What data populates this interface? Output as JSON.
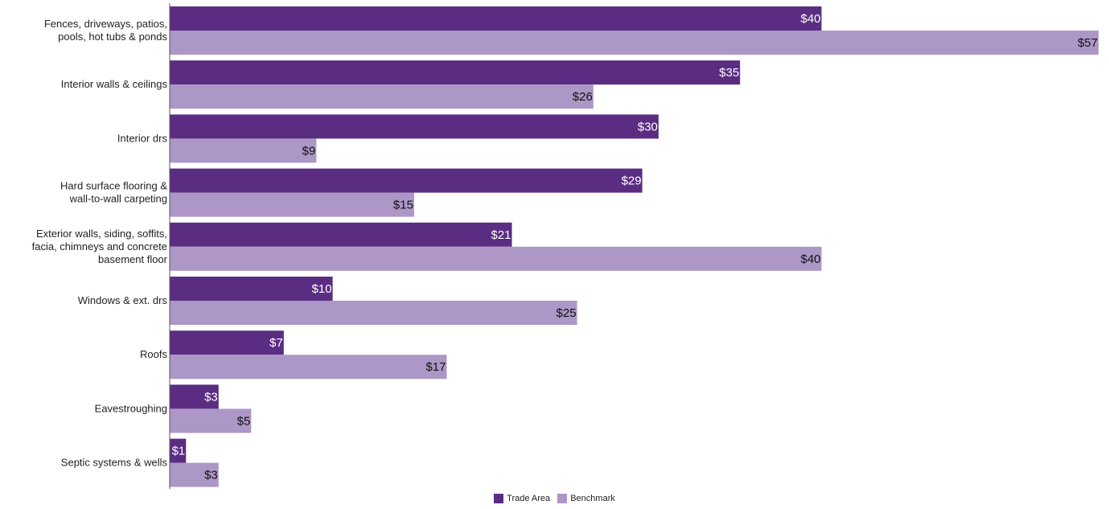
{
  "chart_data": {
    "type": "bar",
    "orientation": "horizontal",
    "title": "",
    "xlabel": "",
    "ylabel": "",
    "xlim": [
      0,
      57
    ],
    "grid": false,
    "legend_position": "bottom-center",
    "categories": [
      [
        "Fences, driveways, patios,",
        "pools, hot tubs & ponds"
      ],
      [
        "Interior walls & ceilings"
      ],
      [
        "Interior drs"
      ],
      [
        "Hard surface flooring &",
        "wall-to-wall carpeting"
      ],
      [
        "Exterior walls, siding, soffits,",
        "facia, chimneys and concrete",
        "basement floor"
      ],
      [
        "Windows & ext. drs"
      ],
      [
        "Roofs"
      ],
      [
        "Eavestroughing"
      ],
      [
        "Septic systems & wells"
      ]
    ],
    "series": [
      {
        "name": "Trade Area",
        "color": "#5a2d82",
        "label_color": "#ffffff",
        "values": [
          40,
          35,
          30,
          29,
          21,
          10,
          7,
          3,
          1
        ],
        "labels": [
          "$40",
          "$35",
          "$30",
          "$29",
          "$21",
          "$10",
          "$7",
          "$3",
          "$1"
        ]
      },
      {
        "name": "Benchmark",
        "color": "#ad97c6",
        "label_color": "#111111",
        "values": [
          57,
          26,
          9,
          15,
          40,
          25,
          17,
          5,
          3
        ],
        "labels": [
          "$57",
          "$26",
          "$9",
          "$15",
          "$40",
          "$25",
          "$17",
          "$5",
          "$3"
        ]
      }
    ]
  }
}
